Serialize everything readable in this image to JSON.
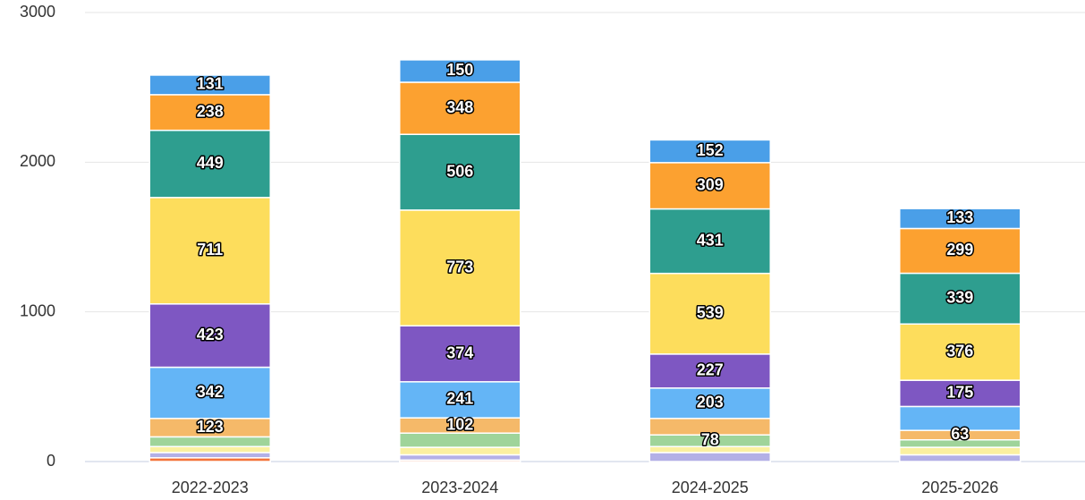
{
  "chart_data": {
    "type": "stacked_bar",
    "categories": [
      "2022-2023",
      "2023-2024",
      "2024-2025",
      "2025-2026"
    ],
    "ylim": [
      0,
      3000
    ],
    "yticks": [
      0,
      1000,
      2000,
      3000
    ],
    "grid": true,
    "series": [
      {
        "color": "#f4743b",
        "values": [
          25,
          10,
          null,
          null
        ],
        "value_labels": [
          null,
          null,
          null,
          null
        ]
      },
      {
        "color": "#b3b0e6",
        "values": [
          35,
          35,
          60,
          45
        ],
        "value_labels": [
          null,
          null,
          null,
          null
        ]
      },
      {
        "color": "#fbf0a0",
        "values": [
          40,
          50,
          40,
          50
        ],
        "value_labels": [
          null,
          null,
          null,
          null
        ]
      },
      {
        "color": "#9fd49a",
        "values": [
          65,
          95,
          78,
          50
        ],
        "value_labels": [
          null,
          null,
          "78",
          null
        ]
      },
      {
        "color": "#f5b969",
        "values": [
          123,
          102,
          110,
          63
        ],
        "value_labels": [
          "123",
          "102",
          null,
          "63"
        ]
      },
      {
        "color": "#64b5f6",
        "values": [
          342,
          241,
          203,
          160
        ],
        "value_labels": [
          "342",
          "241",
          "203",
          null
        ]
      },
      {
        "color": "#7e57c2",
        "values": [
          423,
          374,
          227,
          175
        ],
        "value_labels": [
          "423",
          "374",
          "227",
          "175"
        ]
      },
      {
        "color": "#fddd5c",
        "values": [
          711,
          773,
          539,
          376
        ],
        "value_labels": [
          "711",
          "773",
          "539",
          "376"
        ]
      },
      {
        "color": "#2e9e8f",
        "values": [
          449,
          506,
          431,
          339
        ],
        "value_labels": [
          "449",
          "506",
          "431",
          "339"
        ]
      },
      {
        "color": "#fca130",
        "values": [
          238,
          348,
          309,
          299
        ],
        "value_labels": [
          "238",
          "348",
          "309",
          "299"
        ]
      },
      {
        "color": "#4a9fe8",
        "values": [
          131,
          150,
          152,
          133
        ],
        "value_labels": [
          "131",
          "150",
          "152",
          "133"
        ]
      }
    ]
  }
}
